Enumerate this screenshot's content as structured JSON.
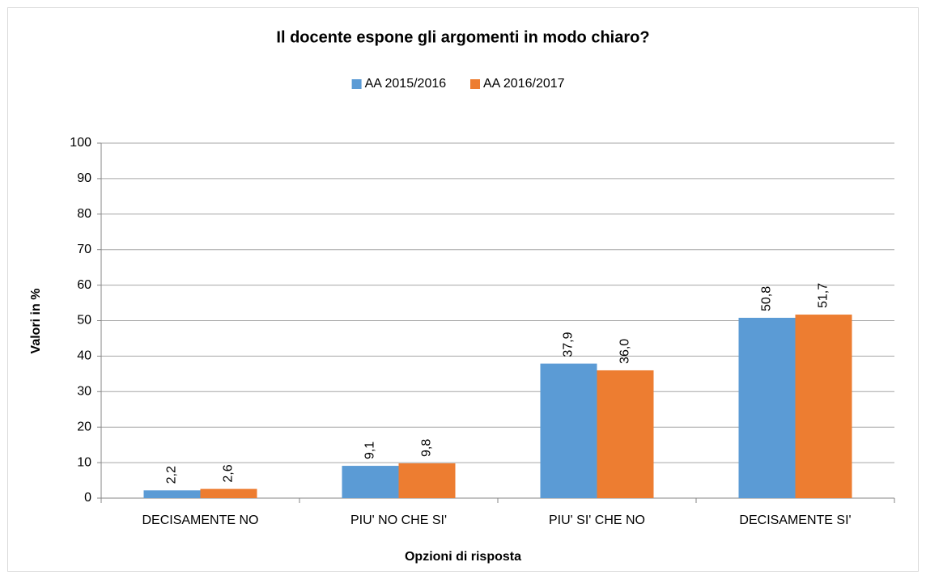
{
  "chart_data": {
    "type": "bar",
    "title": "Il docente espone gli argomenti in modo chiaro?",
    "x_label": "Opzioni di risposta",
    "y_label": "Valori in %",
    "categories": [
      "DECISAMENTE NO",
      "PIU' NO CHE SI'",
      "PIU' SI' CHE NO",
      "DECISAMENTE SI'"
    ],
    "series": [
      {
        "name": "AA 2015/2016",
        "color": "#5b9bd5",
        "values": [
          2.2,
          9.1,
          37.9,
          50.8
        ],
        "value_labels": [
          "2,2",
          "9,1",
          "37,9",
          "50,8"
        ]
      },
      {
        "name": "AA 2016/2017",
        "color": "#ed7d31",
        "values": [
          2.6,
          9.8,
          36.0,
          51.7
        ],
        "value_labels": [
          "2,6",
          "9,8",
          "36,0",
          "51,7"
        ]
      }
    ],
    "ylim": [
      0,
      100
    ],
    "yticks": [
      0,
      10,
      20,
      30,
      40,
      50,
      60,
      70,
      80,
      90,
      100
    ],
    "grid": true,
    "legend": "top"
  }
}
